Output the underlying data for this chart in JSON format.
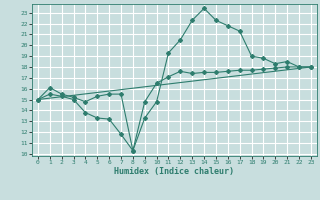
{
  "xlabel": "Humidex (Indice chaleur)",
  "ylabel": "",
  "xlim": [
    -0.5,
    23.5
  ],
  "ylim": [
    9.8,
    23.8
  ],
  "yticks": [
    10,
    11,
    12,
    13,
    14,
    15,
    16,
    17,
    18,
    19,
    20,
    21,
    22,
    23
  ],
  "xticks": [
    0,
    1,
    2,
    3,
    4,
    5,
    6,
    7,
    8,
    9,
    10,
    11,
    12,
    13,
    14,
    15,
    16,
    17,
    18,
    19,
    20,
    21,
    22,
    23
  ],
  "bg_color": "#c8dede",
  "grid_color": "#ffffff",
  "line_color": "#2e7d6e",
  "line1_x": [
    0,
    1,
    2,
    3,
    4,
    5,
    6,
    7,
    8,
    9,
    10,
    11,
    12,
    13,
    14,
    15,
    16,
    17,
    18,
    19,
    20,
    21,
    22,
    23
  ],
  "line1_y": [
    15.0,
    16.1,
    15.5,
    15.2,
    14.8,
    15.3,
    15.5,
    15.5,
    10.3,
    13.3,
    14.8,
    19.3,
    20.5,
    22.3,
    23.4,
    22.3,
    21.8,
    21.3,
    19.0,
    18.8,
    18.3,
    18.5,
    18.0,
    18.0
  ],
  "line2_x": [
    0,
    1,
    2,
    3,
    4,
    5,
    6,
    7,
    8,
    9,
    10,
    11,
    12,
    13,
    14,
    15,
    16,
    17,
    18,
    19,
    20,
    21,
    22,
    23
  ],
  "line2_y": [
    15.0,
    15.5,
    15.3,
    15.0,
    13.8,
    13.3,
    13.2,
    11.8,
    10.3,
    14.8,
    16.5,
    17.1,
    17.6,
    17.4,
    17.5,
    17.5,
    17.6,
    17.7,
    17.7,
    17.8,
    17.9,
    18.0,
    18.0,
    18.0
  ],
  "line3_x": [
    0,
    23
  ],
  "line3_y": [
    15.0,
    18.0
  ]
}
